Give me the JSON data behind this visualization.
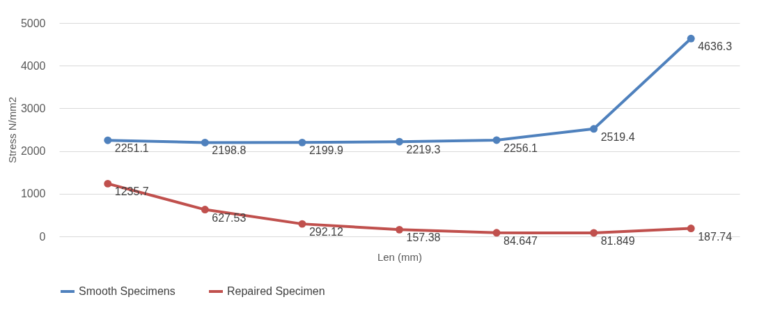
{
  "chart_data": {
    "type": "line",
    "xlabel": "Len (mm)",
    "ylabel": "Stress N/mm2",
    "categories": [
      null,
      null,
      null,
      null,
      null,
      null,
      null
    ],
    "series": [
      {
        "name": "Smooth Specimens",
        "color": "#4f81bd",
        "values": [
          2251.1,
          2198.8,
          2199.9,
          2219.3,
          2256.1,
          2519.4,
          4636.3
        ]
      },
      {
        "name": "Repaired Specimen",
        "color": "#c0504d",
        "values": [
          1235.7,
          627.53,
          292.12,
          157.38,
          84.647,
          81.849,
          187.74
        ]
      }
    ],
    "ylim": [
      0,
      5000
    ],
    "yticks": [
      0,
      1000,
      2000,
      3000,
      4000,
      5000
    ],
    "grid": "y",
    "legend": "bottom",
    "marker": "circle",
    "line_style": "solid",
    "data_labels": true
  }
}
